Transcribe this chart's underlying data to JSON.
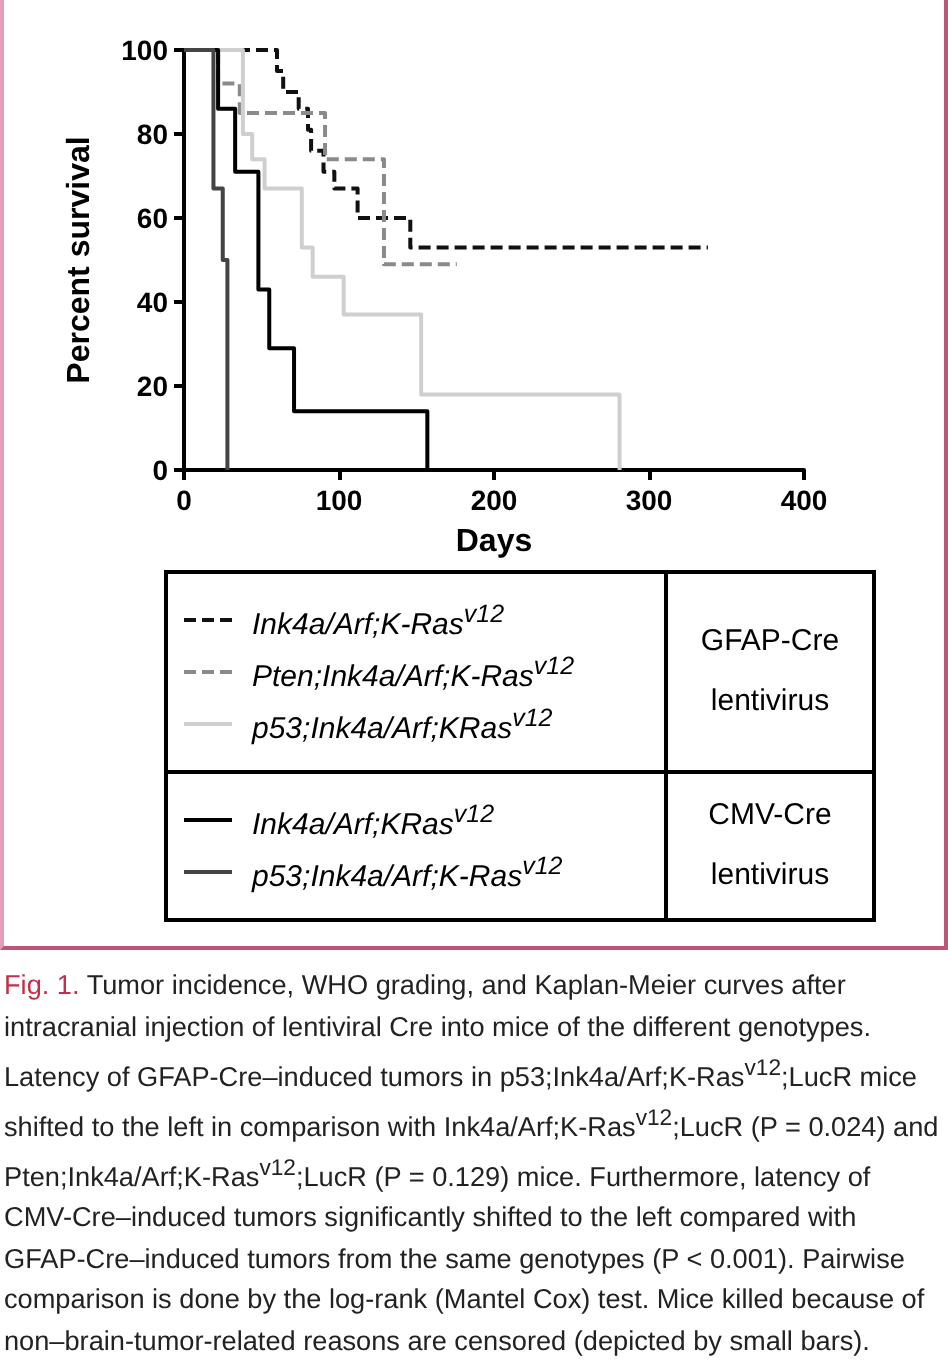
{
  "chart_data": {
    "type": "step",
    "xlabel": "Days",
    "ylabel": "Percent survival",
    "xlim": [
      0,
      400
    ],
    "xticks": [
      0,
      100,
      200,
      300,
      400
    ],
    "ylim": [
      0,
      100
    ],
    "yticks": [
      0,
      20,
      40,
      60,
      80,
      100
    ],
    "grid": false,
    "legend": "bottom",
    "marker": "none",
    "series": [
      {
        "name": "Ink4a/Arf;K-Ras$^{v12}$",
        "color": "#111111",
        "line_style": "dashed",
        "x": [
          0,
          60,
          64,
          74,
          80,
          82,
          90,
          97,
          112,
          146,
          338
        ],
        "values": [
          100,
          95,
          90,
          86,
          81,
          76,
          71,
          67,
          60,
          53,
          53
        ]
      },
      {
        "name": "Pten;Ink4a/Arf;K-Ras$^{v12}$",
        "color": "#8a8a8a",
        "line_style": "dashed",
        "x": [
          0,
          22,
          36,
          91,
          129,
          176
        ],
        "values": [
          100,
          92,
          85,
          74,
          49,
          49
        ]
      },
      {
        "name": "p53;Ink4a/Arf;KRas$^{v12}$",
        "color": "#cfcfcf",
        "line_style": "solid",
        "x": [
          0,
          38,
          44,
          52,
          76,
          83,
          103,
          153,
          281
        ],
        "values": [
          100,
          80,
          74,
          67,
          53,
          46,
          37,
          18,
          0
        ]
      },
      {
        "name": "Ink4a/Arf;KRas$^{v12}$",
        "color": "#000000",
        "line_style": "solid",
        "x": [
          0,
          22,
          33,
          48,
          55,
          71,
          157
        ],
        "values": [
          100,
          86,
          71,
          43,
          29,
          14,
          0
        ]
      },
      {
        "name": "p53;Ink4a/Arf;K-Ras$^{v12}$",
        "color": "#444444",
        "line_style": "solid",
        "x": [
          0,
          19,
          25,
          28
        ],
        "values": [
          100,
          67,
          50,
          0
        ]
      }
    ],
    "annotations": [
      "GFAP-Cre lentivirus",
      "CMV-Cre lentivirus",
      "Fig. 1.",
      "Tumor incidence, WHO grading, and Kaplan-Meier curves after intracranial injection of lentiviral Cre into mice of the different genotypes. Latency of GFAP-Cre–induced tumors in p53;Ink4a/Arf;K-Ras$^{v12}$;LucR mice shifted to the left in comparison with Ink4a/Arf;K-Ras$^{v12}$;LucR (P = 0.024) and Pten;Ink4a/Arf;K-Ras$^{v12}$;LucR (P = 0.129) mice. Furthermore, latency of CMV-Cre–induced tumors significantly shifted to the left compared with GFAP-Cre–induced tumors from the same genotypes (P < 0.001). Pairwise comparison is done by the log-rank (Mantel Cox) test. Mice killed because of non–brain-tumor-related reasons are censored (depicted by small bars)."
    ]
  }
}
